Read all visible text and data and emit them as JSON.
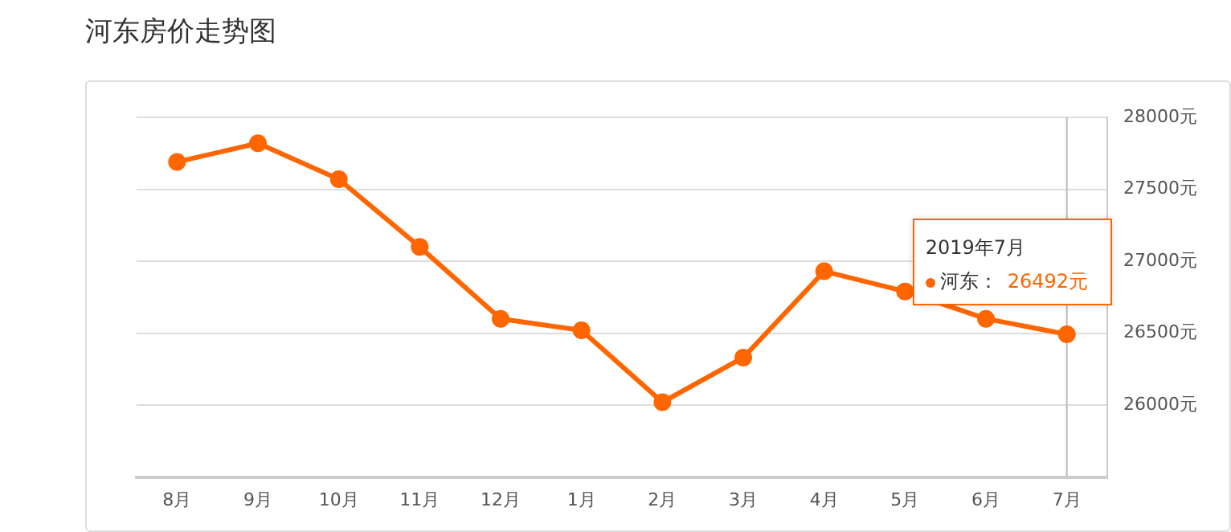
{
  "chart_data": {
    "type": "line",
    "title": "河东房价走势图",
    "categories": [
      "8月",
      "9月",
      "10月",
      "11月",
      "12月",
      "1月",
      "2月",
      "3月",
      "4月",
      "5月",
      "6月",
      "7月"
    ],
    "series": [
      {
        "color": "#ff6600",
        "values": [
          27690,
          27820,
          27570,
          27100,
          26600,
          26520,
          26020,
          26330,
          26930,
          26790,
          26600,
          26492
        ]
      }
    ],
    "ylim": [
      25500,
      28000
    ],
    "yticks": [
      {
        "value": 26000,
        "label": "26000元"
      },
      {
        "value": 26500,
        "label": "26500元"
      },
      {
        "value": 27000,
        "label": "27000元"
      },
      {
        "value": 27500,
        "label": "27500元"
      },
      {
        "value": 28000,
        "label": "28000元"
      }
    ],
    "grid": "y",
    "legend": false,
    "marker": "circle",
    "line_style": "solid",
    "ref_lines": [
      {
        "axis": "x",
        "value": "7月",
        "color": "#bbbbbb"
      }
    ],
    "annotations": [
      "2019年7月",
      "河东：",
      "26492元"
    ]
  }
}
